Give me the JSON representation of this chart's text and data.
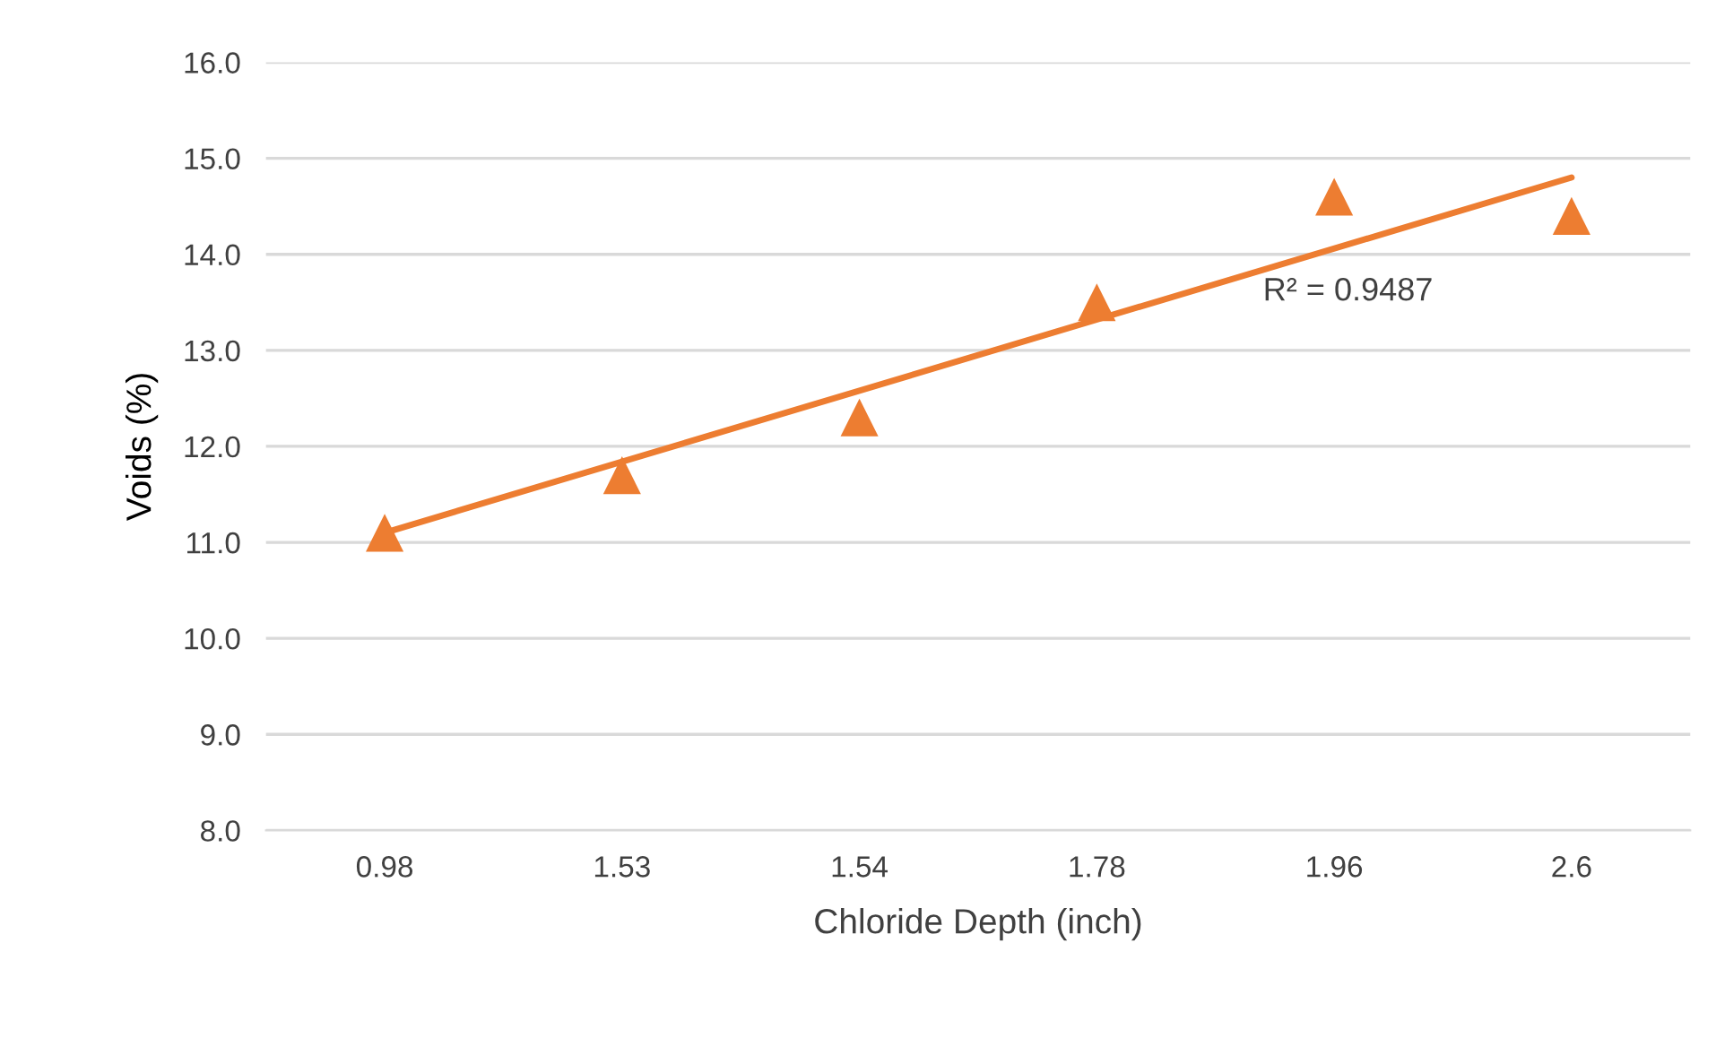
{
  "chart_data": {
    "type": "scatter",
    "xlabel": "Chloride Depth (inch)",
    "ylabel": "Voids (%)",
    "categories": [
      "0.98",
      "1.53",
      "1.54",
      "1.78",
      "1.96",
      "2.6"
    ],
    "series": [
      {
        "color": "#ed7d31",
        "marker": "triangle",
        "values": [
          11.1,
          11.7,
          12.3,
          13.5,
          14.6,
          14.4
        ]
      },
      {
        "type": "line",
        "color": "#ed7d31",
        "x": [
          "0.98",
          "2.6"
        ],
        "values": [
          11.1,
          14.8
        ]
      }
    ],
    "ylim": [
      8.0,
      16.0
    ],
    "yticks": [
      {
        "value": 8,
        "label": "8.0"
      },
      {
        "value": 9,
        "label": "9.0"
      },
      {
        "value": 10,
        "label": "10.0"
      },
      {
        "value": 11,
        "label": "11.0"
      },
      {
        "value": 12,
        "label": "12.0"
      },
      {
        "value": 13,
        "label": "13.0"
      },
      {
        "value": 14,
        "label": "14.0"
      },
      {
        "value": 15,
        "label": "15.0"
      },
      {
        "value": 16,
        "label": "16.0"
      }
    ],
    "grid": "y",
    "annotations": [
      "R² = 0.9487"
    ]
  }
}
